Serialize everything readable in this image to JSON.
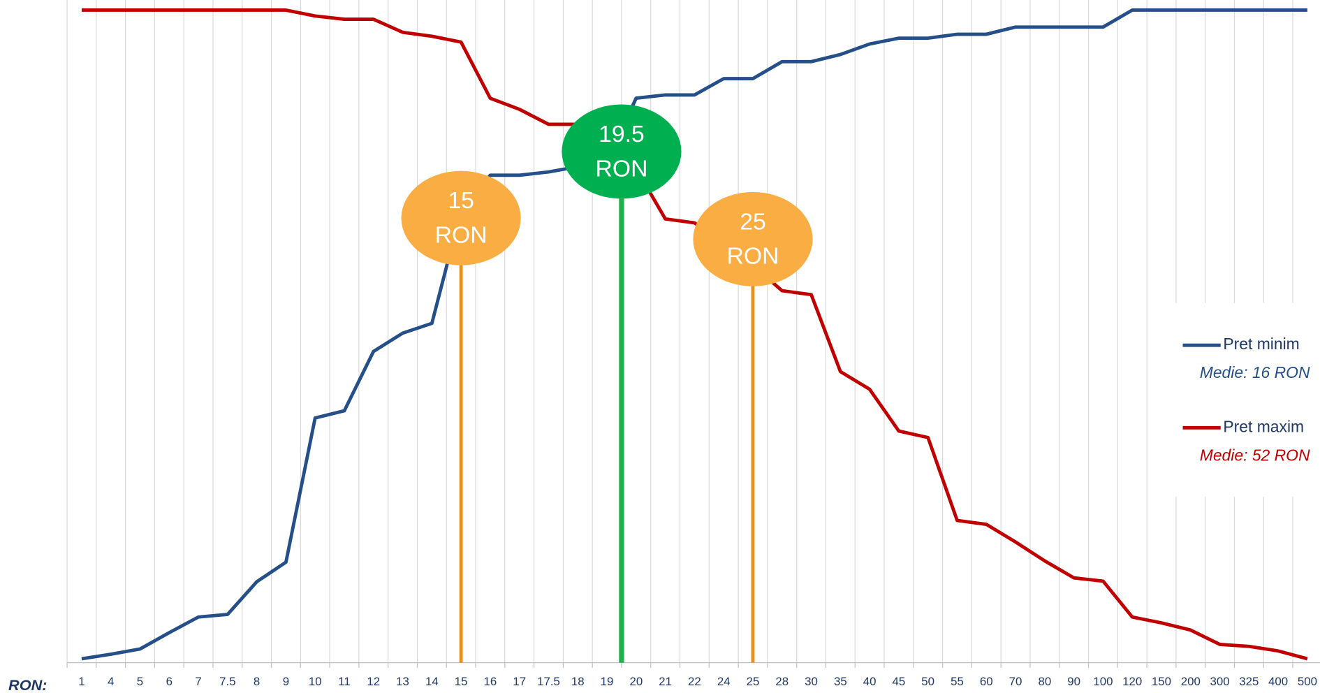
{
  "chart_data": {
    "type": "line",
    "x_label": "RON:",
    "categories": [
      "1",
      "4",
      "5",
      "6",
      "7",
      "7.5",
      "8",
      "9",
      "10",
      "11",
      "12",
      "13",
      "14",
      "15",
      "16",
      "17",
      "17.5",
      "18",
      "19",
      "20",
      "21",
      "22",
      "24",
      "25",
      "28",
      "30",
      "35",
      "40",
      "45",
      "50",
      "55",
      "60",
      "70",
      "80",
      "90",
      "100",
      "120",
      "150",
      "200",
      "300",
      "325",
      "400",
      "500"
    ],
    "ylim": [
      0,
      1
    ],
    "grid": true,
    "series": [
      {
        "name": "Pret minim",
        "average_label": "Medie: 16 RON",
        "color": "#254f88",
        "values": [
          0.006,
          0.013,
          0.021,
          0.046,
          0.07,
          0.074,
          0.124,
          0.154,
          0.375,
          0.386,
          0.477,
          0.505,
          0.52,
          0.693,
          0.747,
          0.747,
          0.752,
          0.76,
          0.77,
          0.865,
          0.87,
          0.87,
          0.895,
          0.895,
          0.921,
          0.921,
          0.932,
          0.948,
          0.957,
          0.957,
          0.963,
          0.963,
          0.974,
          0.974,
          0.974,
          0.974,
          1,
          1,
          1,
          1,
          1,
          1,
          1
        ]
      },
      {
        "name": "Pret maxim",
        "average_label": "Medie: 52 RON",
        "color": "#c00000",
        "values": [
          1,
          1,
          1,
          1,
          1,
          1,
          1,
          1,
          0.991,
          0.986,
          0.986,
          0.966,
          0.96,
          0.951,
          0.865,
          0.848,
          0.825,
          0.825,
          0.81,
          0.757,
          0.68,
          0.674,
          0.641,
          0.609,
          0.57,
          0.564,
          0.446,
          0.419,
          0.355,
          0.345,
          0.218,
          0.212,
          0.185,
          0.156,
          0.13,
          0.125,
          0.07,
          0.061,
          0.05,
          0.028,
          0.025,
          0.018,
          0.006
        ]
      }
    ],
    "annotations": [
      {
        "value": 15,
        "unit": "RON",
        "color": "#f9ad42",
        "line_color": "#e8901a"
      },
      {
        "value": 19.5,
        "unit": "RON",
        "color": "#00b050",
        "line_color": "#22b04b"
      },
      {
        "value": 25,
        "unit": "RON",
        "color": "#f9ad42",
        "line_color": "#e8901a"
      }
    ]
  }
}
